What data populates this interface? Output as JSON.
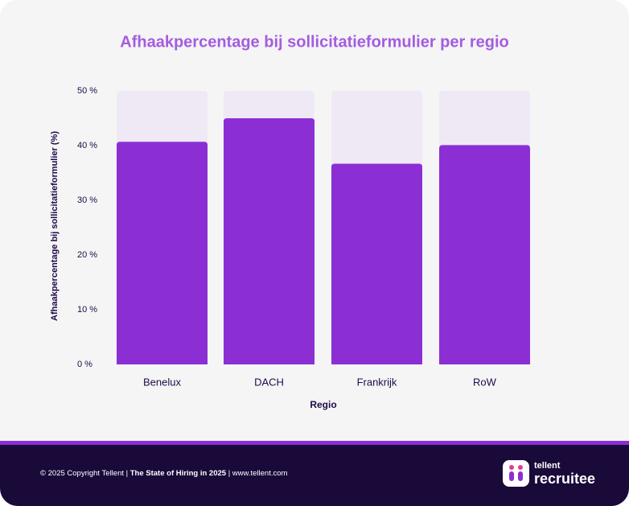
{
  "chart_data": {
    "type": "bar",
    "title": "Afhaakpercentage bij sollicitatieformulier per regio",
    "x_label": "Regio",
    "y_label": "Afhaakpercentage bij sollicitatieformulier (%)",
    "categories": [
      "Benelux",
      "DACH",
      "Frankrijk",
      "RoW"
    ],
    "values": [
      40.7,
      45,
      36.7,
      40.1
    ],
    "color": "#8b2fd4",
    "ylim": [
      0,
      50
    ],
    "yticks": [
      {
        "value": 0,
        "label": "0  %"
      },
      {
        "value": 10,
        "label": "10 %"
      },
      {
        "value": 20,
        "label": "20 %"
      },
      {
        "value": 30,
        "label": "30 %"
      },
      {
        "value": 40,
        "label": "40 %"
      },
      {
        "value": 50,
        "label": "50 %"
      }
    ],
    "grid": false
  },
  "footer": {
    "copyright": "© 2025 Copyright Tellent | ",
    "report": "The State of Hiring in 2025",
    "site": " | www.tellent.com",
    "brand_small": "tellent",
    "brand_large": "recruitee"
  }
}
